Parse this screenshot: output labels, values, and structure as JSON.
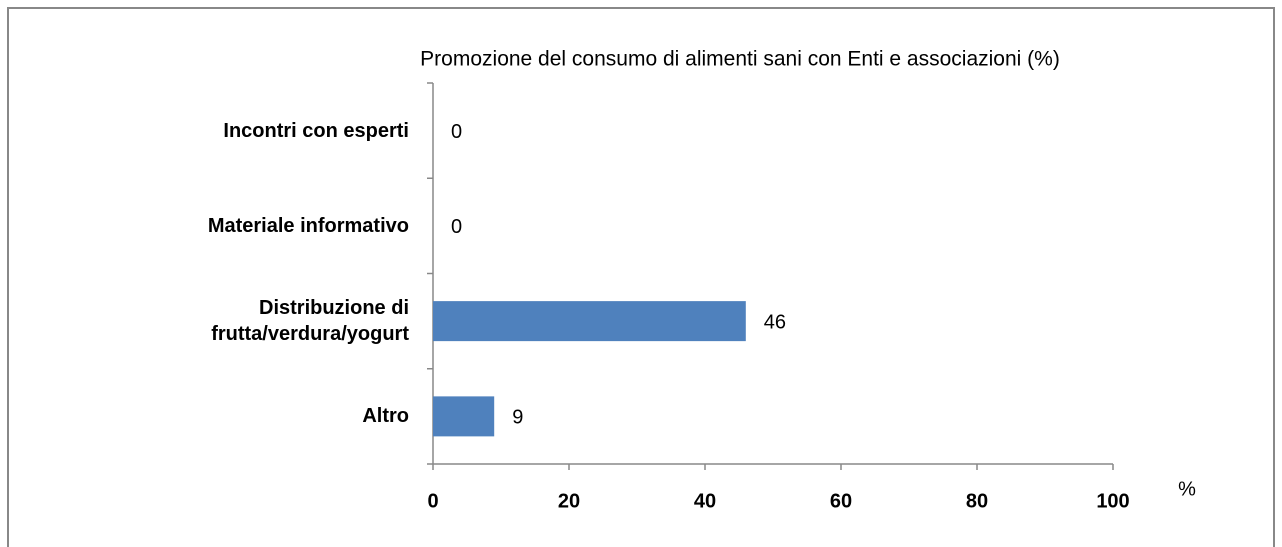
{
  "chart_data": {
    "type": "barh",
    "title": "Promozione del consumo di alimenti sani con Enti e associazioni (%)",
    "categories": [
      "Incontri con esperti",
      "Materiale informativo",
      "Distribuzione di\nfrutta/verdura/yogurt",
      "Altro"
    ],
    "values": [
      0,
      0,
      46,
      9
    ],
    "color": "#4f81bd",
    "xlabel": "%",
    "xlim": [
      0,
      100
    ],
    "xticks": [
      0,
      20,
      40,
      60,
      80,
      100
    ],
    "grid": false
  }
}
